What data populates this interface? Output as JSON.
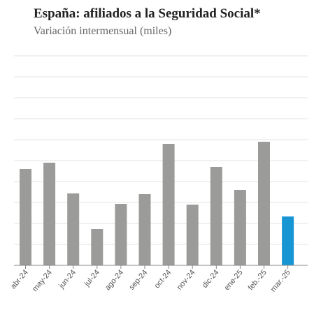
{
  "title": "España: afiliados a la Seguridad Social*",
  "subtitle": "Variación intermensual (miles)",
  "colors": {
    "bar": "#9b9b99",
    "highlight": "#1796d3",
    "grid": "#e3e3e3",
    "axis": "#888888"
  },
  "chart_data": {
    "type": "bar",
    "title": "España: afiliados a la Seguridad Social*",
    "subtitle": "Variación intermensual (miles)",
    "categories": [
      "abr-24",
      "may-24",
      "jun-24",
      "jul-24",
      "ago-24",
      "sep-24",
      "oct-24",
      "nov-24",
      "dic-24",
      "ene-25",
      "feb.-25",
      "mar.-25"
    ],
    "values": [
      138,
      147,
      103,
      52,
      88,
      102,
      174,
      87,
      141,
      108,
      177,
      70
    ],
    "highlight_index": 11,
    "ylim": [
      0,
      300
    ],
    "grid_step": 30,
    "grid": true,
    "xlabel": "",
    "ylabel": ""
  }
}
